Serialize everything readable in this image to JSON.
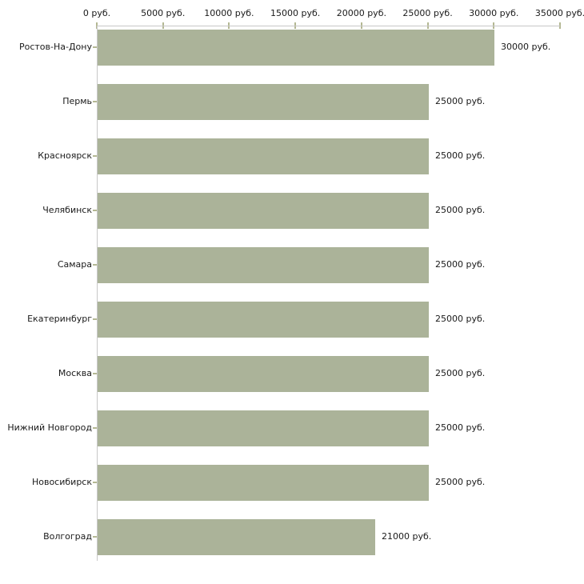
{
  "chart_data": {
    "type": "bar",
    "orientation": "horizontal",
    "title": "",
    "xlabel": "",
    "ylabel": "",
    "unit": "руб.",
    "xlim": [
      0,
      35000
    ],
    "grid": false,
    "legend": "none",
    "categories": [
      "Ростов-На-Дону",
      "Пермь",
      "Красноярск",
      "Челябинск",
      "Самара",
      "Екатеринбург",
      "Москва",
      "Нижний Новгород",
      "Новосибирск",
      "Волгоград"
    ],
    "values": [
      30000,
      25000,
      25000,
      25000,
      25000,
      25000,
      25000,
      25000,
      25000,
      21000
    ],
    "value_labels": [
      "30000 руб.",
      "25000 руб.",
      "25000 руб.",
      "25000 руб.",
      "25000 руб.",
      "25000 руб.",
      "25000 руб.",
      "25000 руб.",
      "25000 руб.",
      "21000 руб."
    ],
    "x_ticks": [
      0,
      5000,
      10000,
      15000,
      20000,
      25000,
      30000,
      35000
    ],
    "x_tick_labels": [
      "0 руб.",
      "5000 руб.",
      "10000 руб.",
      "15000 руб.",
      "20000 руб.",
      "25000 руб.",
      "30000 руб.",
      "35000 руб."
    ],
    "colors": {
      "bar": "#abb399",
      "axis_line": "#c8c8c8",
      "tick_mark": "#b4b893",
      "text": "#1a1a1a",
      "background": "#ffffff"
    }
  }
}
